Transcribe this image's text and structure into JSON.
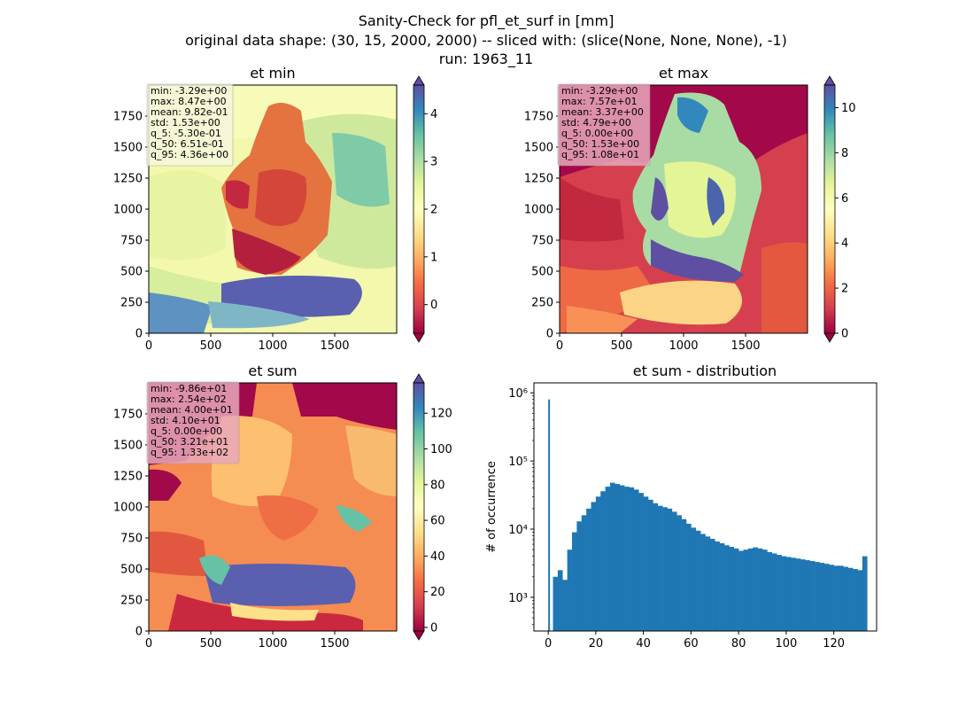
{
  "figure": {
    "title_lines": [
      "Sanity-Check for pfl_et_surf in [mm]",
      "original data shape: (30, 15, 2000, 2000) -- sliced with: (slice(None, None, None), -1)",
      "run: 1963_11"
    ]
  },
  "chart_data": [
    {
      "type": "heatmap",
      "title": "et min",
      "xlim": [
        0,
        2000
      ],
      "ylim": [
        0,
        2000
      ],
      "xticks": [
        0,
        500,
        1000,
        1500
      ],
      "yticks": [
        0,
        250,
        500,
        750,
        1000,
        1250,
        1500,
        1750
      ],
      "colormap": "Spectral",
      "colorbar_range": [
        -0.6,
        4.6
      ],
      "colorbar_ticks": [
        0,
        1,
        2,
        3,
        4
      ],
      "stats": [
        "min: -3.29e+00",
        "max: 8.47e+00",
        "mean: 9.82e-01",
        "std: 1.53e+00",
        "q_5: -5.30e-01",
        "q_50: 6.51e-01",
        "q_95: 4.36e+00"
      ],
      "stats_box_color": "#f7f7e0"
    },
    {
      "type": "heatmap",
      "title": "et max",
      "xlim": [
        0,
        2000
      ],
      "ylim": [
        0,
        2000
      ],
      "xticks": [
        0,
        500,
        1000,
        1500
      ],
      "yticks": [
        0,
        250,
        500,
        750,
        1000,
        1250,
        1500,
        1750
      ],
      "colormap": "Spectral",
      "colorbar_range": [
        0,
        11
      ],
      "colorbar_ticks": [
        0,
        2,
        4,
        6,
        8,
        10
      ],
      "stats": [
        "min: -3.29e+00",
        "max: 7.57e+01",
        "mean: 3.37e+00",
        "std: 4.79e+00",
        "q_5: 0.00e+00",
        "q_50: 1.53e+00",
        "q_95: 1.08e+01"
      ],
      "stats_box_color": "#e8a8ba"
    },
    {
      "type": "heatmap",
      "title": "et sum",
      "xlim": [
        0,
        2000
      ],
      "ylim": [
        0,
        2000
      ],
      "xticks": [
        0,
        500,
        1000,
        1500
      ],
      "yticks": [
        0,
        250,
        500,
        750,
        1000,
        1250,
        1500,
        1750
      ],
      "colormap": "Spectral",
      "colorbar_range": [
        -2,
        137
      ],
      "colorbar_ticks": [
        0,
        20,
        40,
        60,
        80,
        100,
        120
      ],
      "stats": [
        "min: -9.86e+01",
        "max: 2.54e+02",
        "mean: 4.00e+01",
        "std: 4.10e+01",
        "q_5: 0.00e+00",
        "q_50: 3.21e+01",
        "q_95: 1.33e+02"
      ],
      "stats_box_color": "#e8a8ba"
    },
    {
      "type": "bar",
      "title": "et sum - distribution",
      "ylabel": "# of occurrence",
      "xlabel": "",
      "yscale": "log",
      "color": "#1f77b4",
      "xlim": [
        -6,
        138
      ],
      "ylim": [
        320,
        1400000
      ],
      "xticks": [
        0,
        20,
        40,
        60,
        80,
        100,
        120
      ],
      "yticks": [
        1000,
        10000,
        100000,
        1000000
      ],
      "ytick_labels": [
        "10³",
        "10⁴",
        "10⁵",
        "10⁶"
      ],
      "bin_width": 0.5,
      "x": [
        0,
        2,
        4,
        6,
        8,
        10,
        12,
        14,
        16,
        18,
        20,
        22,
        24,
        26,
        28,
        30,
        32,
        34,
        36,
        38,
        40,
        42,
        44,
        46,
        48,
        50,
        52,
        54,
        56,
        58,
        60,
        62,
        64,
        66,
        68,
        70,
        72,
        74,
        76,
        78,
        80,
        82,
        84,
        86,
        88,
        90,
        92,
        94,
        96,
        98,
        100,
        102,
        104,
        106,
        108,
        110,
        112,
        114,
        116,
        118,
        120,
        122,
        124,
        126,
        128,
        130,
        132
      ],
      "values": [
        800000,
        2000,
        2500,
        1800,
        5000,
        9000,
        13000,
        16000,
        20000,
        25000,
        30000,
        36000,
        42000,
        48000,
        46000,
        44000,
        42000,
        41000,
        38000,
        34000,
        30000,
        27000,
        24000,
        22000,
        21000,
        20000,
        18000,
        16000,
        14000,
        12000,
        10500,
        9500,
        8500,
        7800,
        7200,
        6600,
        6200,
        5800,
        5500,
        5200,
        4800,
        5000,
        5200,
        5400,
        5200,
        5000,
        4600,
        4400,
        4200,
        4000,
        3900,
        3800,
        3700,
        3600,
        3500,
        3400,
        3300,
        3200,
        3100,
        3000,
        2900,
        2900,
        2800,
        2700,
        2600,
        2500,
        4000
      ]
    }
  ]
}
